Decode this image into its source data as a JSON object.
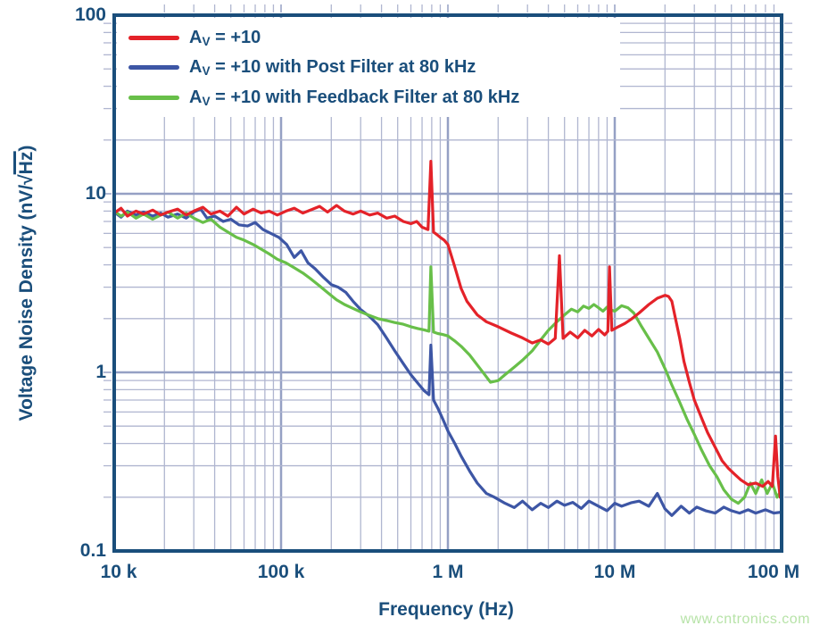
{
  "figure": {
    "x_axis_title": "Frequency (Hz)",
    "y_axis_title": {
      "pre": "Voltage Noise Density (nV/",
      "sqrt": "√",
      "radicand": "Hz",
      "post": ")"
    },
    "watermark": {
      "text": "www.cntronics.com",
      "color": "#b7e3a8"
    }
  },
  "legend": {
    "items": [
      {
        "pre": "A",
        "sub": "V",
        "rest": " = +10",
        "color": "#e42229"
      },
      {
        "pre": "A",
        "sub": "V",
        "rest": " = +10 with Post Filter at 80 kHz",
        "color": "#3d56a5"
      },
      {
        "pre": "A",
        "sub": "V",
        "rest": " = +10 with Feedback Filter at 80 kHz",
        "color": "#68bf49"
      }
    ]
  },
  "chart_data": {
    "type": "line",
    "title": "",
    "xlabel": "Frequency (Hz)",
    "ylabel": "Voltage Noise Density (nV/√Hz)",
    "x_scale": "log",
    "y_scale": "log",
    "xlim": [
      10000,
      100000000
    ],
    "ylim": [
      0.1,
      100
    ],
    "grid": true,
    "legend_position": "top-left",
    "colors": {
      "axis": "#1a4e7b",
      "grid_minor": "#b0b6d0",
      "grid_major": "#95a0c4"
    },
    "x_ticks": [
      {
        "value": 10000,
        "label": "10 k"
      },
      {
        "value": 100000,
        "label": "100 k"
      },
      {
        "value": 1000000,
        "label": "1 M"
      },
      {
        "value": 10000000,
        "label": "10 M"
      },
      {
        "value": 100000000,
        "label": "100 M"
      }
    ],
    "y_ticks": [
      {
        "value": 100,
        "label": "100"
      },
      {
        "value": 10,
        "label": "10"
      },
      {
        "value": 1,
        "label": "1"
      },
      {
        "value": 0.1,
        "label": "0.1"
      }
    ],
    "series": [
      {
        "name": "AV = +10",
        "color": "#e42229",
        "points": [
          [
            10000,
            7.8
          ],
          [
            11000,
            8.3
          ],
          [
            12000,
            7.5
          ],
          [
            13500,
            8.0
          ],
          [
            15000,
            7.7
          ],
          [
            17000,
            8.1
          ],
          [
            19000,
            7.6
          ],
          [
            21000,
            7.9
          ],
          [
            24000,
            8.2
          ],
          [
            27000,
            7.6
          ],
          [
            30000,
            8.0
          ],
          [
            34000,
            8.4
          ],
          [
            38000,
            7.7
          ],
          [
            43000,
            8.0
          ],
          [
            48000,
            7.5
          ],
          [
            54000,
            8.4
          ],
          [
            60000,
            7.7
          ],
          [
            68000,
            8.2
          ],
          [
            76000,
            7.8
          ],
          [
            85000,
            8.0
          ],
          [
            95000,
            7.6
          ],
          [
            107000,
            8.0
          ],
          [
            120000,
            8.3
          ],
          [
            135000,
            7.8
          ],
          [
            150000,
            8.1
          ],
          [
            170000,
            8.5
          ],
          [
            190000,
            7.9
          ],
          [
            215000,
            8.6
          ],
          [
            240000,
            8.0
          ],
          [
            270000,
            7.7
          ],
          [
            300000,
            8.0
          ],
          [
            340000,
            7.6
          ],
          [
            380000,
            7.8
          ],
          [
            430000,
            7.3
          ],
          [
            480000,
            7.5
          ],
          [
            540000,
            7.0
          ],
          [
            600000,
            6.8
          ],
          [
            650000,
            7.0
          ],
          [
            700000,
            6.5
          ],
          [
            760000,
            6.3
          ],
          [
            790000,
            15.2
          ],
          [
            820000,
            6.1
          ],
          [
            860000,
            5.9
          ],
          [
            900000,
            5.7
          ],
          [
            950000,
            5.5
          ],
          [
            1000000,
            5.2
          ],
          [
            1100000,
            3.9
          ],
          [
            1200000,
            2.95
          ],
          [
            1300000,
            2.5
          ],
          [
            1500000,
            2.1
          ],
          [
            1700000,
            1.92
          ],
          [
            2000000,
            1.8
          ],
          [
            2400000,
            1.66
          ],
          [
            2800000,
            1.56
          ],
          [
            3200000,
            1.46
          ],
          [
            3600000,
            1.52
          ],
          [
            4000000,
            1.44
          ],
          [
            4400000,
            1.55
          ],
          [
            4660000,
            4.5
          ],
          [
            4900000,
            1.55
          ],
          [
            5400000,
            1.68
          ],
          [
            6000000,
            1.56
          ],
          [
            6600000,
            1.72
          ],
          [
            7300000,
            1.6
          ],
          [
            8000000,
            1.74
          ],
          [
            8700000,
            1.62
          ],
          [
            9100000,
            1.7
          ],
          [
            9300000,
            3.9
          ],
          [
            9600000,
            1.72
          ],
          [
            10500000,
            1.8
          ],
          [
            11500000,
            1.88
          ],
          [
            12500000,
            1.98
          ],
          [
            14000000,
            2.15
          ],
          [
            16000000,
            2.4
          ],
          [
            18000000,
            2.6
          ],
          [
            20000000,
            2.7
          ],
          [
            21000000,
            2.66
          ],
          [
            22000000,
            2.5
          ],
          [
            23000000,
            2.05
          ],
          [
            24500000,
            1.55
          ],
          [
            26000000,
            1.15
          ],
          [
            28000000,
            0.88
          ],
          [
            30000000,
            0.7
          ],
          [
            33000000,
            0.56
          ],
          [
            36000000,
            0.46
          ],
          [
            40000000,
            0.38
          ],
          [
            44000000,
            0.32
          ],
          [
            48000000,
            0.29
          ],
          [
            52000000,
            0.27
          ],
          [
            57000000,
            0.25
          ],
          [
            63000000,
            0.235
          ],
          [
            70000000,
            0.24
          ],
          [
            77000000,
            0.23
          ],
          [
            83000000,
            0.245
          ],
          [
            88000000,
            0.23
          ],
          [
            92000000,
            0.44
          ],
          [
            95000000,
            0.26
          ],
          [
            98000000,
            0.2
          ],
          [
            100000000,
            0.22
          ]
        ]
      },
      {
        "name": "AV = +10 with Post Filter at 80 kHz",
        "color": "#3d56a5",
        "points": [
          [
            10000,
            7.9
          ],
          [
            11000,
            7.4
          ],
          [
            12000,
            8.0
          ],
          [
            13500,
            7.6
          ],
          [
            15000,
            7.9
          ],
          [
            17000,
            7.5
          ],
          [
            19000,
            7.8
          ],
          [
            21000,
            7.4
          ],
          [
            24000,
            7.7
          ],
          [
            27000,
            7.3
          ],
          [
            30000,
            7.9
          ],
          [
            33000,
            8.2
          ],
          [
            36000,
            7.3
          ],
          [
            40000,
            7.5
          ],
          [
            45000,
            7.0
          ],
          [
            50000,
            7.2
          ],
          [
            56000,
            6.7
          ],
          [
            63000,
            6.6
          ],
          [
            70000,
            6.9
          ],
          [
            78000,
            6.3
          ],
          [
            87000,
            6.0
          ],
          [
            97000,
            5.7
          ],
          [
            108000,
            5.2
          ],
          [
            120000,
            4.4
          ],
          [
            132000,
            4.8
          ],
          [
            145000,
            4.1
          ],
          [
            160000,
            3.8
          ],
          [
            180000,
            3.4
          ],
          [
            200000,
            3.1
          ],
          [
            220000,
            3.0
          ],
          [
            245000,
            2.8
          ],
          [
            270000,
            2.5
          ],
          [
            300000,
            2.25
          ],
          [
            340000,
            2.05
          ],
          [
            380000,
            1.85
          ],
          [
            430000,
            1.55
          ],
          [
            480000,
            1.32
          ],
          [
            540000,
            1.12
          ],
          [
            600000,
            0.97
          ],
          [
            660000,
            0.87
          ],
          [
            720000,
            0.79
          ],
          [
            770000,
            0.75
          ],
          [
            790000,
            1.42
          ],
          [
            820000,
            0.7
          ],
          [
            870000,
            0.63
          ],
          [
            930000,
            0.55
          ],
          [
            1000000,
            0.47
          ],
          [
            1100000,
            0.4
          ],
          [
            1200000,
            0.34
          ],
          [
            1350000,
            0.28
          ],
          [
            1500000,
            0.24
          ],
          [
            1700000,
            0.21
          ],
          [
            1900000,
            0.2
          ],
          [
            2200000,
            0.185
          ],
          [
            2500000,
            0.175
          ],
          [
            2800000,
            0.19
          ],
          [
            3200000,
            0.17
          ],
          [
            3600000,
            0.185
          ],
          [
            4000000,
            0.175
          ],
          [
            4500000,
            0.19
          ],
          [
            5000000,
            0.18
          ],
          [
            5600000,
            0.187
          ],
          [
            6300000,
            0.173
          ],
          [
            7000000,
            0.19
          ],
          [
            8000000,
            0.178
          ],
          [
            9000000,
            0.168
          ],
          [
            10000000,
            0.185
          ],
          [
            11000000,
            0.178
          ],
          [
            12500000,
            0.186
          ],
          [
            14000000,
            0.19
          ],
          [
            16000000,
            0.178
          ],
          [
            18000000,
            0.21
          ],
          [
            20000000,
            0.172
          ],
          [
            22000000,
            0.158
          ],
          [
            25000000,
            0.178
          ],
          [
            28000000,
            0.163
          ],
          [
            31000000,
            0.176
          ],
          [
            35000000,
            0.168
          ],
          [
            40000000,
            0.163
          ],
          [
            45000000,
            0.176
          ],
          [
            50000000,
            0.168
          ],
          [
            56000000,
            0.163
          ],
          [
            63000000,
            0.17
          ],
          [
            70000000,
            0.163
          ],
          [
            80000000,
            0.17
          ],
          [
            90000000,
            0.163
          ],
          [
            100000000,
            0.165
          ]
        ]
      },
      {
        "name": "AV = +10 with Feedback Filter at 80 kHz",
        "color": "#68bf49",
        "points": [
          [
            10000,
            8.0
          ],
          [
            11000,
            7.5
          ],
          [
            12000,
            7.9
          ],
          [
            13500,
            7.3
          ],
          [
            15000,
            7.7
          ],
          [
            17000,
            7.2
          ],
          [
            19000,
            7.6
          ],
          [
            21000,
            7.9
          ],
          [
            24000,
            7.3
          ],
          [
            27000,
            7.8
          ],
          [
            30000,
            7.3
          ],
          [
            34000,
            6.9
          ],
          [
            38000,
            7.2
          ],
          [
            43000,
            6.5
          ],
          [
            48000,
            6.1
          ],
          [
            54000,
            5.7
          ],
          [
            60000,
            5.5
          ],
          [
            68000,
            5.2
          ],
          [
            76000,
            4.9
          ],
          [
            85000,
            4.6
          ],
          [
            95000,
            4.3
          ],
          [
            107000,
            4.1
          ],
          [
            120000,
            3.85
          ],
          [
            135000,
            3.6
          ],
          [
            150000,
            3.35
          ],
          [
            170000,
            3.05
          ],
          [
            190000,
            2.8
          ],
          [
            215000,
            2.55
          ],
          [
            240000,
            2.4
          ],
          [
            270000,
            2.28
          ],
          [
            300000,
            2.18
          ],
          [
            340000,
            2.08
          ],
          [
            380000,
            2.0
          ],
          [
            430000,
            1.95
          ],
          [
            480000,
            1.9
          ],
          [
            540000,
            1.86
          ],
          [
            600000,
            1.8
          ],
          [
            660000,
            1.76
          ],
          [
            720000,
            1.73
          ],
          [
            770000,
            1.7
          ],
          [
            790000,
            3.9
          ],
          [
            820000,
            1.68
          ],
          [
            870000,
            1.65
          ],
          [
            930000,
            1.63
          ],
          [
            1000000,
            1.6
          ],
          [
            1100000,
            1.5
          ],
          [
            1200000,
            1.4
          ],
          [
            1350000,
            1.25
          ],
          [
            1500000,
            1.1
          ],
          [
            1650000,
            0.98
          ],
          [
            1800000,
            0.88
          ],
          [
            2000000,
            0.9
          ],
          [
            2200000,
            0.97
          ],
          [
            2500000,
            1.07
          ],
          [
            2800000,
            1.17
          ],
          [
            3200000,
            1.32
          ],
          [
            3600000,
            1.52
          ],
          [
            4000000,
            1.72
          ],
          [
            4500000,
            1.92
          ],
          [
            5000000,
            2.1
          ],
          [
            5500000,
            2.26
          ],
          [
            6000000,
            2.18
          ],
          [
            6500000,
            2.35
          ],
          [
            7000000,
            2.28
          ],
          [
            7500000,
            2.4
          ],
          [
            8000000,
            2.3
          ],
          [
            8500000,
            2.2
          ],
          [
            9000000,
            2.32
          ],
          [
            9500000,
            2.24
          ],
          [
            10000000,
            2.2
          ],
          [
            11000000,
            2.36
          ],
          [
            12000000,
            2.3
          ],
          [
            13000000,
            2.15
          ],
          [
            14500000,
            1.8
          ],
          [
            16000000,
            1.55
          ],
          [
            18000000,
            1.3
          ],
          [
            20000000,
            1.05
          ],
          [
            22000000,
            0.85
          ],
          [
            24500000,
            0.68
          ],
          [
            27000000,
            0.55
          ],
          [
            30000000,
            0.45
          ],
          [
            33000000,
            0.37
          ],
          [
            37000000,
            0.3
          ],
          [
            41000000,
            0.26
          ],
          [
            45000000,
            0.22
          ],
          [
            50000000,
            0.195
          ],
          [
            55000000,
            0.185
          ],
          [
            60000000,
            0.2
          ],
          [
            65000000,
            0.24
          ],
          [
            70000000,
            0.21
          ],
          [
            76000000,
            0.25
          ],
          [
            82000000,
            0.21
          ],
          [
            88000000,
            0.24
          ],
          [
            94000000,
            0.2
          ],
          [
            100000000,
            0.22
          ]
        ]
      }
    ]
  }
}
